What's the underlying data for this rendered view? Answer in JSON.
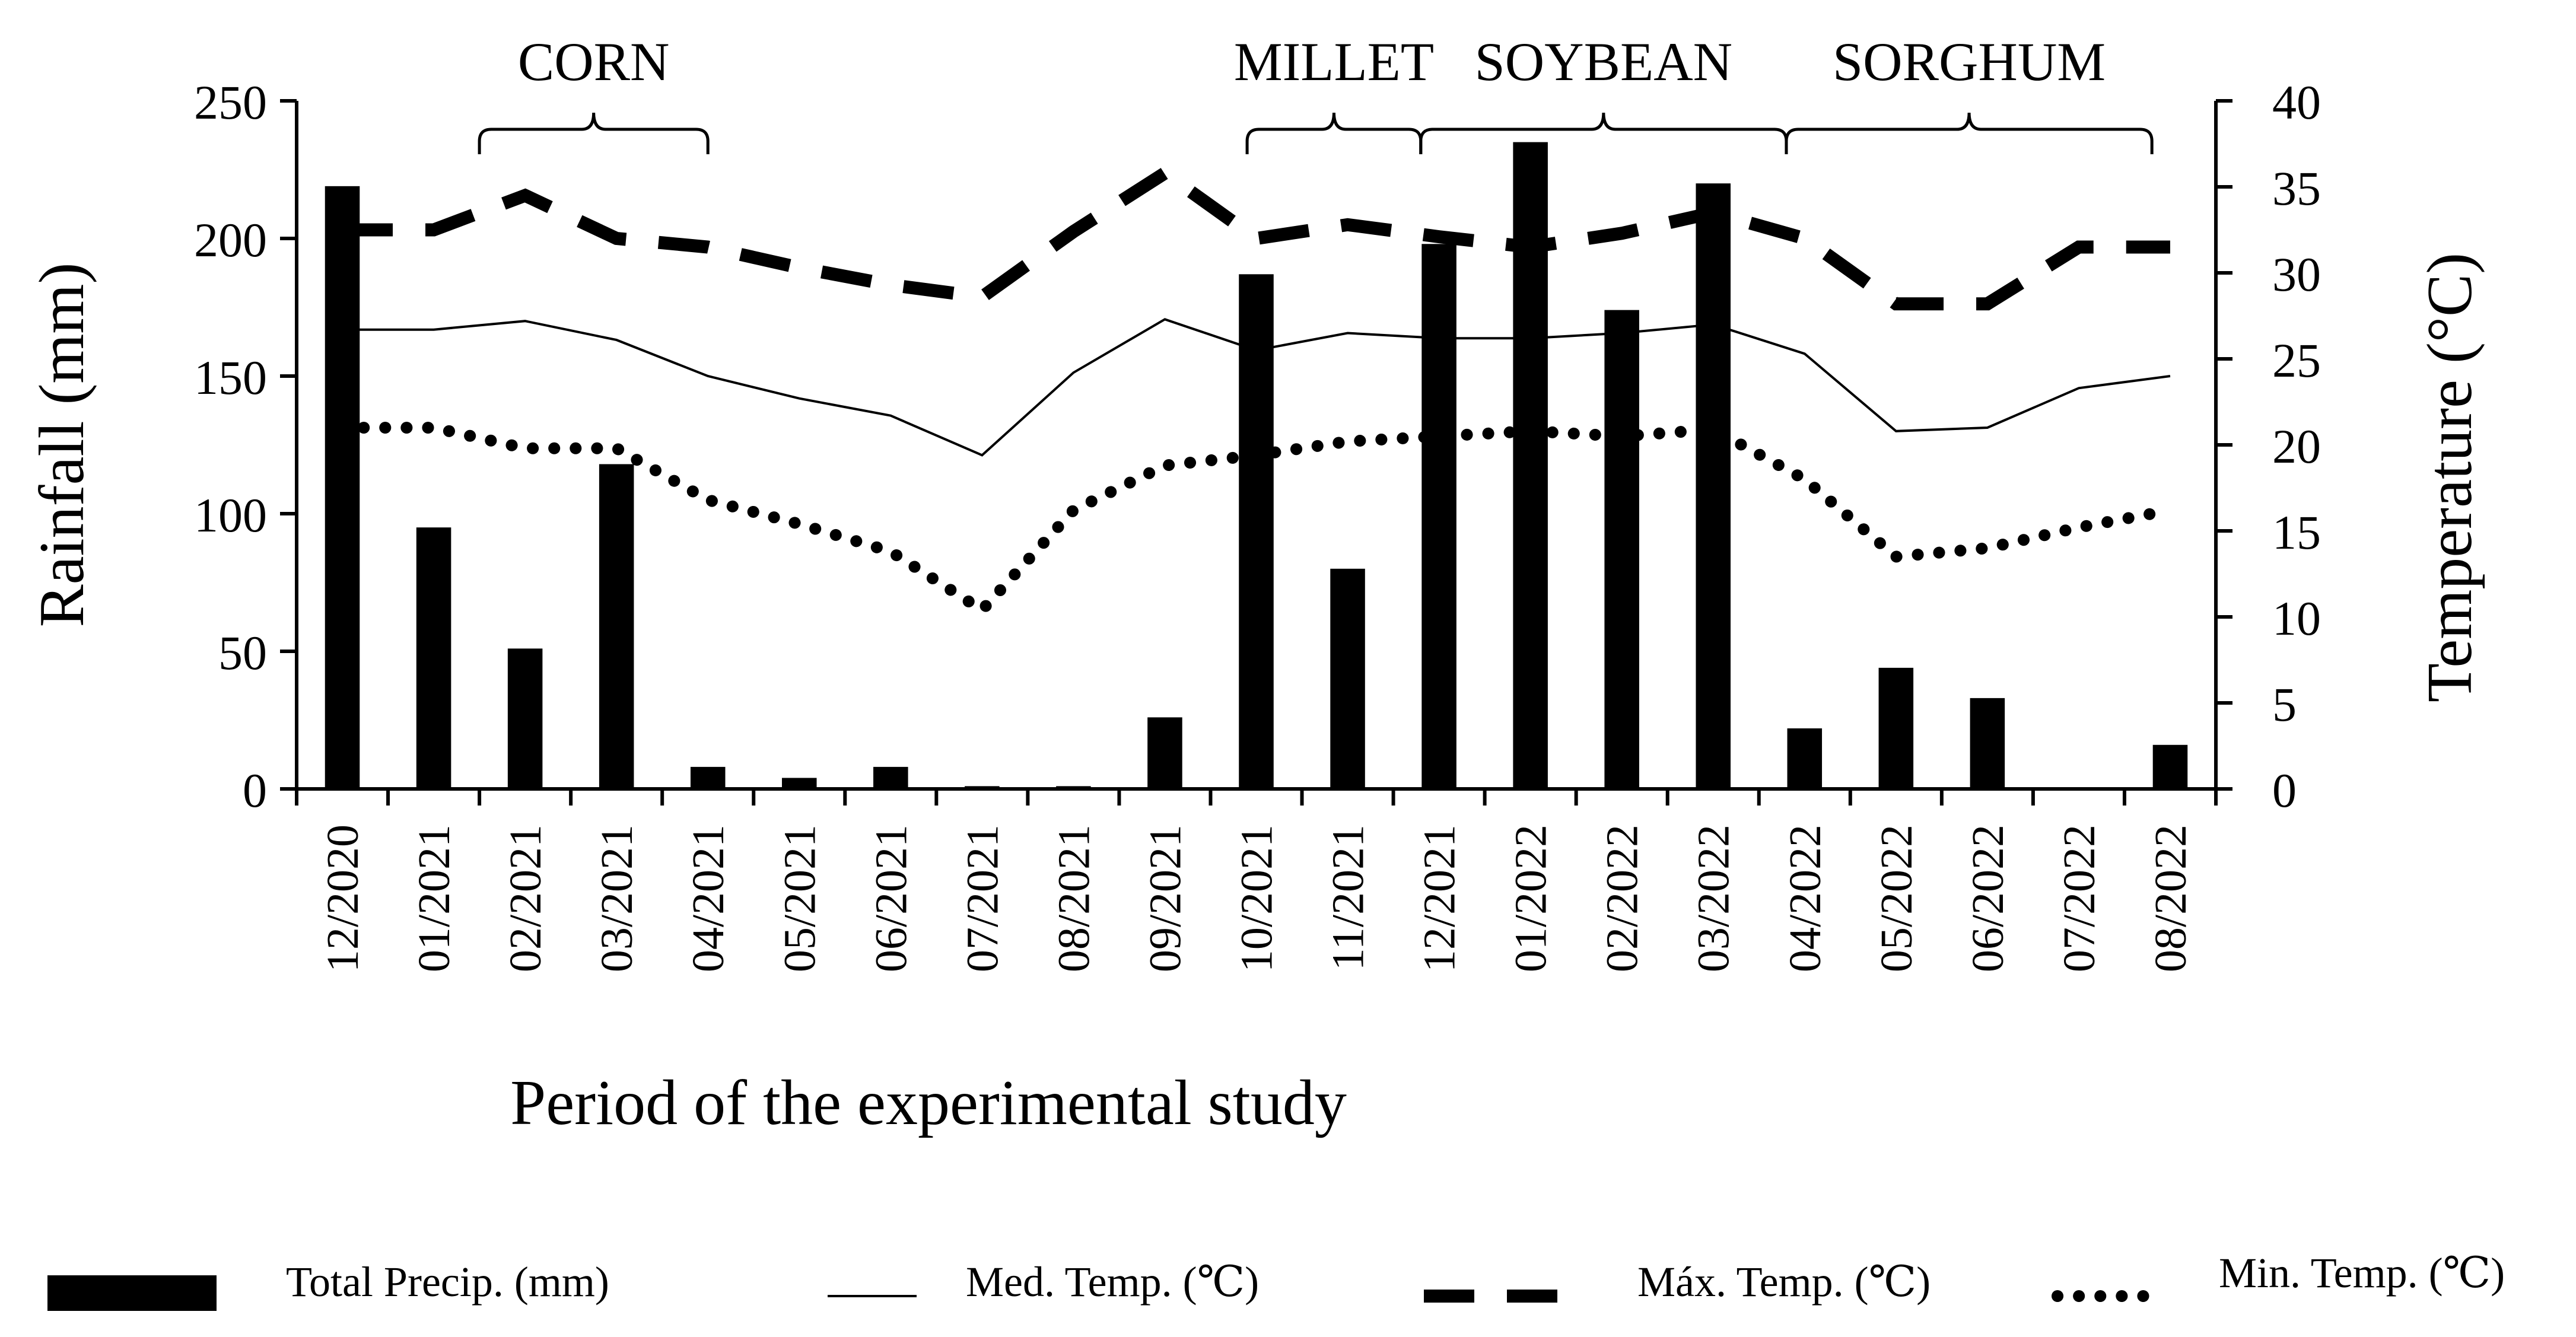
{
  "chart_data": {
    "type": "bar",
    "xlabel": "Period of the experimental study",
    "ylabel": "Rainfall (mm)",
    "y2label": "Temperature (°C)",
    "ylim": [
      0,
      250
    ],
    "y2lim": [
      0,
      40
    ],
    "yticks": [
      "0",
      "50",
      "100",
      "150",
      "200",
      "250"
    ],
    "y2ticks": [
      "0",
      "5",
      "10",
      "15",
      "20",
      "25",
      "30",
      "35",
      "40"
    ],
    "categories": [
      "12/2020",
      "01/2021",
      "02/2021",
      "03/2021",
      "04/2021",
      "05/2021",
      "06/2021",
      "07/2021",
      "08/2021",
      "09/2021",
      "10/2021",
      "11/2021",
      "12/2021",
      "01/2022",
      "02/2022",
      "03/2022",
      "04/2022",
      "05/2022",
      "06/2022",
      "07/2022",
      "08/2022"
    ],
    "series": [
      {
        "name": "Total Precip. (mm)",
        "type": "bar",
        "axis": "left",
        "values": [
          219,
          95,
          51,
          118,
          8,
          4,
          8,
          1,
          1,
          26,
          187,
          80,
          198,
          235,
          174,
          220,
          22,
          44,
          33,
          0,
          16
        ]
      },
      {
        "name": "Med. Temp. (°C)",
        "type": "line",
        "style": "solid",
        "axis": "right",
        "values": [
          26.7,
          26.7,
          27.2,
          26.1,
          24.0,
          22.7,
          21.7,
          19.4,
          24.2,
          27.3,
          25.5,
          26.5,
          26.2,
          26.2,
          26.5,
          27.0,
          25.3,
          20.8,
          21.0,
          23.3,
          24.0
        ]
      },
      {
        "name": "Máx. Temp. (°C)",
        "type": "line",
        "style": "dashed",
        "axis": "right",
        "values": [
          32.5,
          32.5,
          34.5,
          32.0,
          31.5,
          30.3,
          29.3,
          28.6,
          32.4,
          35.8,
          32.0,
          32.8,
          32.1,
          31.5,
          32.3,
          33.5,
          32.0,
          28.2,
          28.2,
          31.5,
          31.5
        ]
      },
      {
        "name": "Min. Temp. (°C)",
        "type": "line",
        "style": "dotted",
        "axis": "right",
        "values": [
          21.0,
          21.0,
          19.8,
          19.8,
          16.8,
          15.4,
          13.8,
          10.4,
          16.2,
          18.8,
          19.4,
          20.2,
          20.5,
          20.8,
          20.5,
          20.9,
          18.0,
          13.5,
          14.0,
          15.2,
          16.2
        ]
      }
    ],
    "crops": [
      {
        "label": "CORN",
        "from": 1.5,
        "to": 4
      },
      {
        "label": "MILLET",
        "from": 9.9,
        "to": 11.8
      },
      {
        "label": "SOYBEAN",
        "from": 11.8,
        "to": 15.8
      },
      {
        "label": "SORGHUM",
        "from": 15.8,
        "to": 19.8
      }
    ],
    "legend": [
      "Total Precip. (mm)",
      "Med. Temp. (°C)",
      "Máx. Temp. (°C)",
      "Min. Temp. (°C)"
    ],
    "legend_labels": [
      "Total Precip. (mm)",
      "Med. Temp. (℃)",
      "Máx. Temp. (℃)",
      "Min. Temp. (℃)"
    ]
  }
}
